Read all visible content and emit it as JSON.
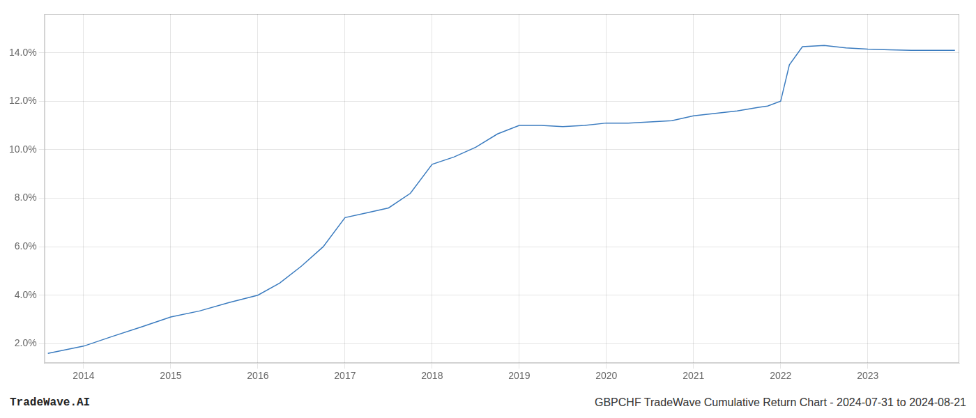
{
  "chart_data": {
    "type": "line",
    "title": "GBPCHF TradeWave Cumulative Return Chart - 2024-07-31 to 2024-08-21",
    "annotations": [
      "TradeWave.AI"
    ],
    "x": [
      2013.59,
      2014.0,
      2014.33,
      2014.67,
      2015.0,
      2015.33,
      2015.67,
      2016.0,
      2016.25,
      2016.5,
      2016.75,
      2017.0,
      2017.25,
      2017.5,
      2017.75,
      2018.0,
      2018.25,
      2018.5,
      2018.75,
      2019.0,
      2019.25,
      2019.5,
      2019.75,
      2020.0,
      2020.25,
      2020.5,
      2020.75,
      2021.0,
      2021.25,
      2021.5,
      2021.75,
      2021.85,
      2022.0,
      2022.1,
      2022.25,
      2022.5,
      2022.75,
      2023.0,
      2023.25,
      2023.5,
      2023.75,
      2024.0
    ],
    "values": [
      1.6,
      1.9,
      2.3,
      2.7,
      3.1,
      3.35,
      3.7,
      4.0,
      4.5,
      5.2,
      6.0,
      7.2,
      7.4,
      7.6,
      8.2,
      9.4,
      9.7,
      10.1,
      10.65,
      11.0,
      11.0,
      10.95,
      11.0,
      11.1,
      11.1,
      11.15,
      11.2,
      11.4,
      11.5,
      11.6,
      11.75,
      11.8,
      12.0,
      13.5,
      14.25,
      14.3,
      14.2,
      14.15,
      14.12,
      14.1,
      14.1,
      14.1
    ],
    "color": "#3a7bbf",
    "xlim": [
      2013.55,
      2024.05
    ],
    "xticks": [
      2014,
      2015,
      2016,
      2017,
      2018,
      2019,
      2020,
      2021,
      2022,
      2023
    ],
    "ylim": [
      1.2,
      15.6
    ],
    "yticks": [
      {
        "value": 2.0,
        "label": "2.0%"
      },
      {
        "value": 4.0,
        "label": "4.0%"
      },
      {
        "value": 6.0,
        "label": "6.0%"
      },
      {
        "value": 8.0,
        "label": "8.0%"
      },
      {
        "value": 10.0,
        "label": "10.0%"
      },
      {
        "value": 12.0,
        "label": "12.0%"
      },
      {
        "value": 14.0,
        "label": "14.0%"
      }
    ],
    "grid": true
  }
}
